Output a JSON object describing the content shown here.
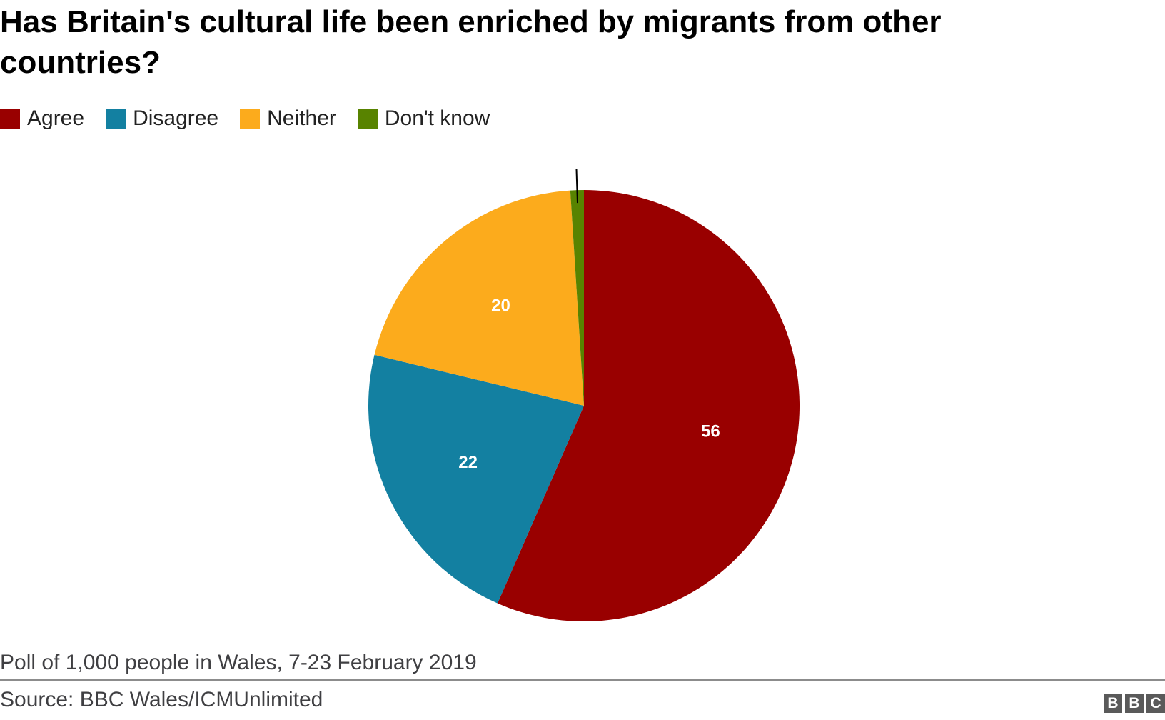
{
  "chart_data": {
    "type": "pie",
    "title": "Has Britain's cultural life been enriched by migrants from other countries?",
    "slices": [
      {
        "label": "Agree",
        "value": 56,
        "color": "#990000",
        "shown_label": "56"
      },
      {
        "label": "Disagree",
        "value": 22,
        "color": "#1380a1",
        "shown_label": "22"
      },
      {
        "label": "Neither",
        "value": 20,
        "color": "#fcab1c",
        "shown_label": "20"
      },
      {
        "label": "Don't know",
        "value": 1,
        "color": "#588300",
        "shown_label": ""
      }
    ],
    "legend": {
      "position": "top-left",
      "items": [
        "Agree",
        "Disagree",
        "Neither",
        "Don't know"
      ]
    }
  },
  "footer": {
    "note": "Poll of 1,000 people in Wales, 7-23 February 2019",
    "source": "Source: BBC Wales/ICMUnlimited"
  },
  "logo": {
    "letters": [
      "B",
      "B",
      "C"
    ]
  }
}
